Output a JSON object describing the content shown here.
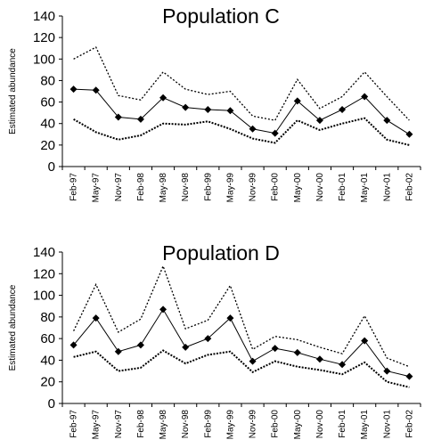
{
  "chart_data": [
    {
      "type": "line",
      "title": "Population C",
      "ylabel": "Estimated abundance",
      "xlabel": "",
      "ylim": [
        0,
        140
      ],
      "yticks": [
        "0",
        "20",
        "40",
        "60",
        "80",
        "100",
        "120",
        "140"
      ],
      "categories": [
        "Feb-97",
        "May-97",
        "Nov-97",
        "Feb-98",
        "May-98",
        "Nov-98",
        "Feb-99",
        "May-99",
        "Nov-99",
        "Feb-00",
        "May-00",
        "Nov-00",
        "Feb-01",
        "May-01",
        "Nov-01",
        "Feb-02"
      ],
      "series": [
        {
          "style": "solid-diamond",
          "values": [
            72,
            71,
            46,
            44,
            64,
            55,
            53,
            52,
            35,
            31,
            61,
            43,
            53,
            65,
            43,
            30
          ]
        },
        {
          "style": "upper-dotted",
          "values": [
            100,
            111,
            66,
            62,
            88,
            72,
            67,
            70,
            47,
            43,
            81,
            54,
            65,
            88,
            65,
            43
          ]
        },
        {
          "style": "lower-dotted",
          "values": [
            44,
            32,
            25,
            29,
            40,
            39,
            42,
            35,
            26,
            22,
            43,
            34,
            40,
            45,
            25,
            20
          ]
        }
      ],
      "grid": false,
      "legend": "none",
      "colors": {
        "line": "#000000"
      }
    },
    {
      "type": "line",
      "title": "Population D",
      "ylabel": "Estimated abundance",
      "xlabel": "",
      "ylim": [
        0,
        140
      ],
      "yticks": [
        "0",
        "20",
        "40",
        "60",
        "80",
        "100",
        "120",
        "140"
      ],
      "categories": [
        "Feb-97",
        "May-97",
        "Nov-97",
        "Feb-98",
        "May-98",
        "Nov-98",
        "Feb-99",
        "May-99",
        "Nov-99",
        "Feb-00",
        "May-00",
        "Nov-00",
        "Feb-01",
        "May-01",
        "Nov-01",
        "Feb-02"
      ],
      "series": [
        {
          "style": "solid-diamond",
          "values": [
            54,
            79,
            48,
            54,
            87,
            52,
            60,
            79,
            39,
            51,
            47,
            41,
            36,
            58,
            30,
            25
          ]
        },
        {
          "style": "upper-dotted",
          "values": [
            67,
            110,
            66,
            78,
            127,
            69,
            77,
            109,
            50,
            62,
            59,
            52,
            46,
            81,
            42,
            34
          ]
        },
        {
          "style": "lower-dotted",
          "values": [
            43,
            48,
            30,
            33,
            49,
            37,
            45,
            48,
            29,
            39,
            34,
            31,
            27,
            38,
            20,
            15
          ]
        }
      ],
      "grid": false,
      "legend": "none",
      "colors": {
        "line": "#000000"
      }
    }
  ]
}
